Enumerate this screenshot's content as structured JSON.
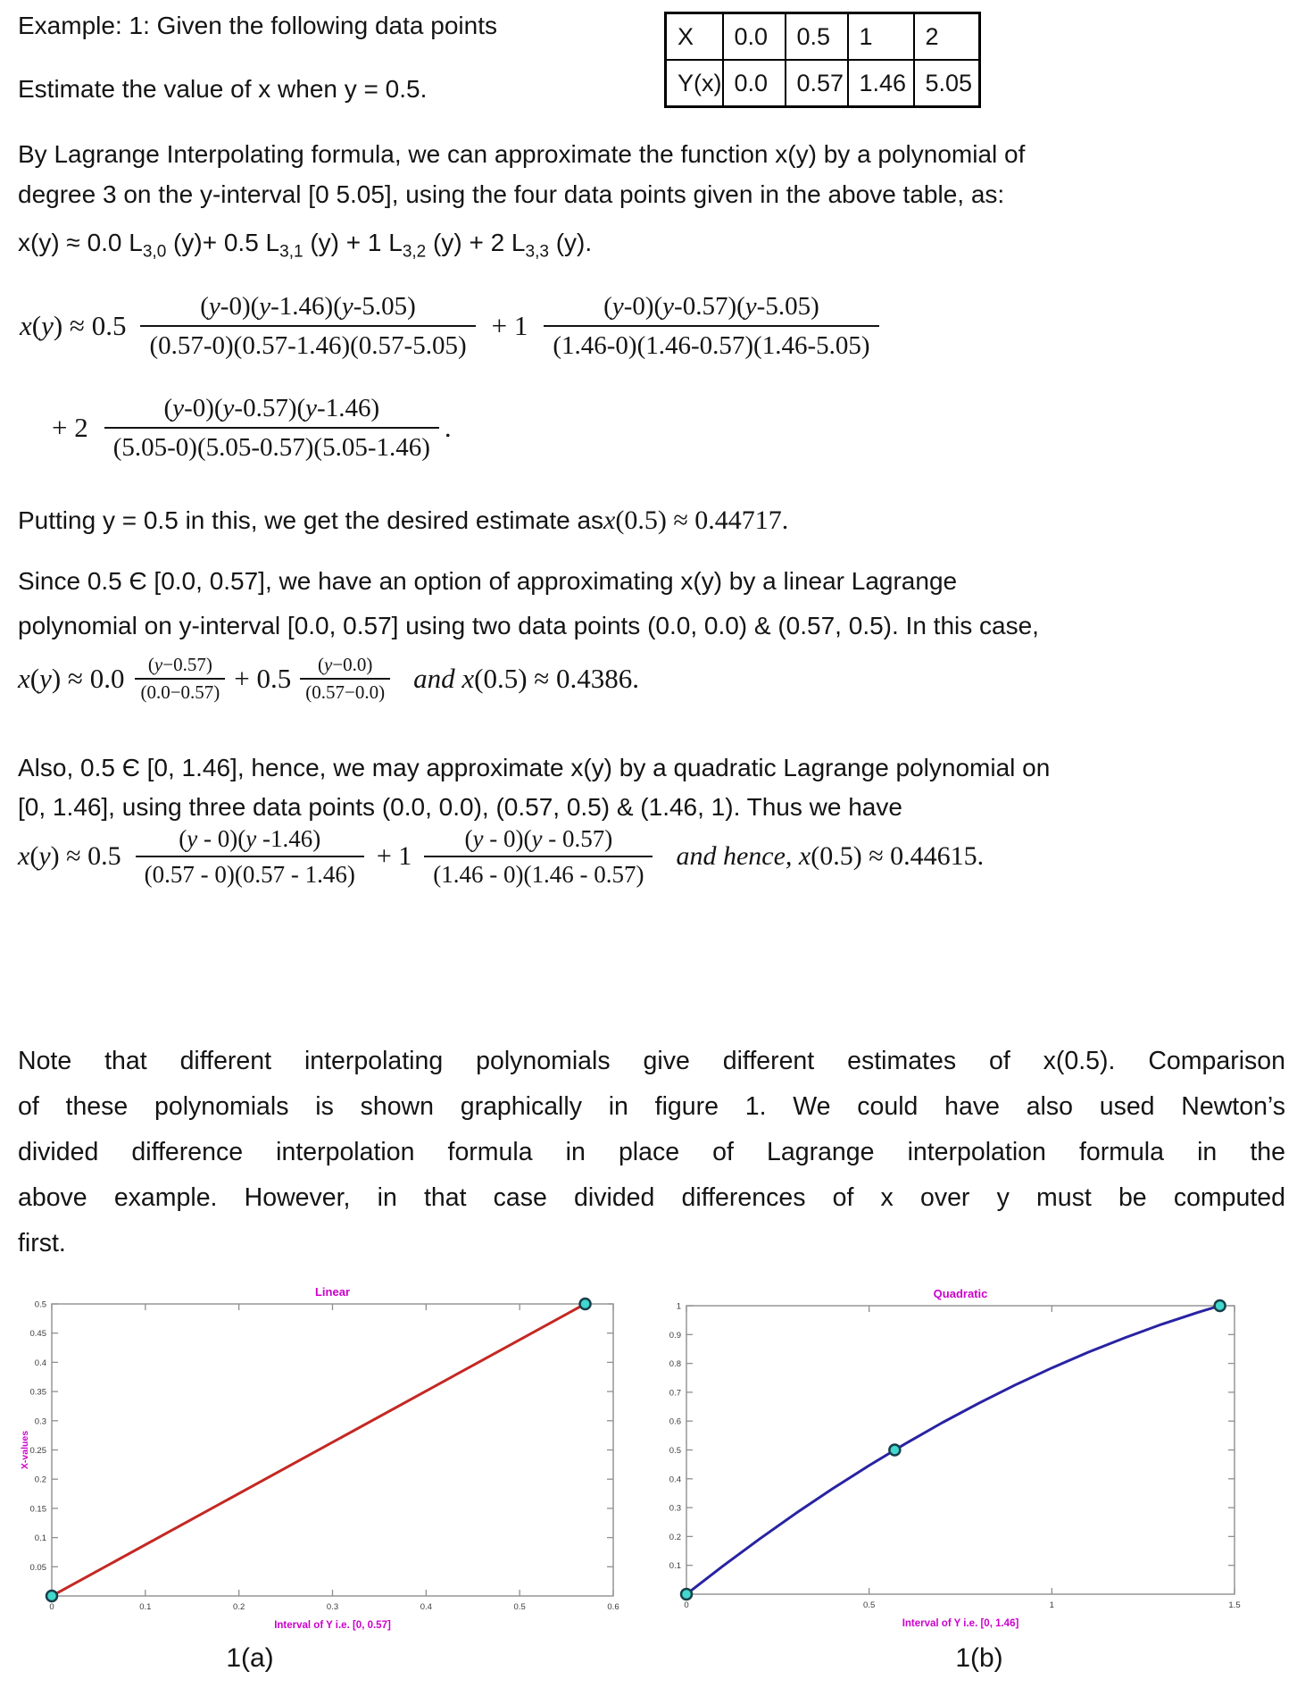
{
  "header": {
    "line1": "Example: 1: Given the following data points",
    "line2": "Estimate the value of x when y = 0.5."
  },
  "data_table": {
    "rows": [
      [
        "X",
        "0.0",
        "0.5",
        "1",
        "2"
      ],
      [
        "Y(x)",
        "0.0",
        "0.57",
        "1.46",
        "5.05"
      ]
    ]
  },
  "para_lagrange": {
    "lines": [
      "By Lagrange Interpolating formula, we can approximate the function x(y) by a polynomial of",
      "degree 3 on the y-interval [0  5.05], using the four data points given in the above table, as:"
    ]
  },
  "eq_basis": {
    "parts": [
      "x(y) ≈ 0.0 L",
      "3,0",
      " (y)+ 0.5 L",
      "3,1",
      " (y) + 1 L",
      "3,2",
      " (y) + 2 L",
      "3,3",
      " (y)."
    ]
  },
  "eq_cubic": {
    "lead": "x(y) ≈ 0.5",
    "frac1": {
      "num": "(y-0)(y-1.46)(y-5.05)",
      "den": "(0.57-0)(0.57-1.46)(0.57-5.05)"
    },
    "plus1": "+ 1",
    "frac2": {
      "num": "(y-0)(y-0.57)(y-5.05)",
      "den": "(1.46-0)(1.46-0.57)(1.46-5.05)"
    },
    "plus2": "+ 2",
    "frac3": {
      "num": "(y-0)(y-0.57)(y-1.46)",
      "den": "(5.05-0)(5.05-0.57)(5.05-1.46)"
    },
    "period": "."
  },
  "para_putting": {
    "prefix": "Putting y = 0.5 in this, we get the desired estimate as ",
    "math": "x(0.5) ≈ 0.44717."
  },
  "para_since": {
    "lines": [
      "Since 0.5 Є [0.0, 0.57], we have an option of approximating x(y) by a linear Lagrange",
      "polynomial on y-interval [0.0, 0.57] using two data points (0.0, 0.0) & (0.57, 0.5). In this case,"
    ]
  },
  "eq_linear": {
    "lead": "x(y) ≈ 0.0",
    "frac1": {
      "num": "(y−0.57)",
      "den": "(0.0−0.57)"
    },
    "plus": "+ 0.5",
    "frac2": {
      "num": "(y−0.0)",
      "den": "(0.57−0.0)"
    },
    "tail_and": "and ",
    "tail_rest": "x(0.5) ≈ 0.4386."
  },
  "para_also": {
    "lines": [
      "Also, 0.5 Є [0, 1.46], hence, we may approximate x(y) by a quadratic Lagrange polynomial on",
      "[0, 1.46], using three data points (0.0, 0.0), (0.57, 0.5) & (1.46, 1). Thus we have"
    ]
  },
  "eq_quadratic": {
    "lead": "x(y) ≈ 0.5",
    "frac1": {
      "num": "(y - 0)(y -1.46)",
      "den": "(0.57 - 0)(0.57 - 1.46)"
    },
    "plus": "+ 1",
    "frac2": {
      "num": "(y - 0)(y - 0.57)",
      "den": "(1.46 - 0)(1.46 - 0.57)"
    },
    "tail_and": "and hence, ",
    "tail_rest": "x(0.5) ≈ 0.44615."
  },
  "para_note": {
    "lines": [
      "Note that different interpolating polynomials give different estimates of x(0.5). Comparison",
      "of these polynomials is shown graphically in figure 1. We could have also used Newton’s",
      "divided difference interpolation formula in place of Lagrange interpolation formula in the",
      "above example. However, in that case divided differences of x over y must be computed",
      "first."
    ]
  },
  "figures": {
    "caption_a": "1(a)",
    "caption_b": "1(b)"
  },
  "chart_data": [
    {
      "type": "line",
      "title": "Linear",
      "xlabel": "Interval of Y i.e. [0, 0.57]",
      "ylabel": "X-values",
      "xlim": [
        0,
        0.6
      ],
      "ylim": [
        0,
        0.5
      ],
      "xtick_vals": [
        0,
        0.1,
        0.2,
        0.3,
        0.4,
        0.5,
        0.6
      ],
      "xtick_labels": [
        "0",
        "0.1",
        "0.2",
        "0.3",
        "0.4",
        "0.5",
        "0.6"
      ],
      "ytick_vals": [
        0.05,
        0.1,
        0.15,
        0.2,
        0.25,
        0.3,
        0.35,
        0.4,
        0.45,
        0.5
      ],
      "ytick_labels": [
        "0.05",
        "0.1",
        "0.15",
        "0.2",
        "0.25",
        "0.3",
        "0.35",
        "0.4",
        "0.45",
        "0.5"
      ],
      "line_color": "#c42823",
      "marker_fill": "#41d8cd",
      "marker_edge": "#173f4a",
      "accent_color": "#cc00cc",
      "curve": [
        [
          0,
          0
        ],
        [
          0.57,
          0.5
        ]
      ],
      "markers": [
        [
          0,
          0
        ],
        [
          0.57,
          0.5
        ]
      ]
    },
    {
      "type": "line",
      "title": "Quadratic",
      "xlabel": "Interval of Y i.e. [0, 1.46]",
      "ylabel": "X-values",
      "xlim": [
        0,
        1.5
      ],
      "ylim": [
        0,
        1
      ],
      "xtick_vals": [
        0,
        0.5,
        1,
        1.5
      ],
      "xtick_labels": [
        "0",
        "0.5",
        "1",
        "1.5"
      ],
      "ytick_vals": [
        0.1,
        0.2,
        0.3,
        0.4,
        0.5,
        0.6,
        0.7,
        0.8,
        0.9,
        1
      ],
      "ytick_labels": [
        "0.1",
        "0.2",
        "0.3",
        "0.4",
        "0.5",
        "0.6",
        "0.7",
        "0.8",
        "0.9",
        "1"
      ],
      "line_color": "#2823a2",
      "marker_fill": "#41d8cd",
      "marker_edge": "#173f4a",
      "accent_color": "#cc00cc",
      "curve": [
        [
          0,
          0
        ],
        [
          0.1,
          0.0979
        ],
        [
          0.2,
          0.1914
        ],
        [
          0.3,
          0.2807
        ],
        [
          0.4,
          0.3656
        ],
        [
          0.5,
          0.4462
        ],
        [
          0.6,
          0.5224
        ],
        [
          0.7,
          0.5944
        ],
        [
          0.8,
          0.662
        ],
        [
          0.9,
          0.7253
        ],
        [
          1.0,
          0.7843
        ],
        [
          1.1,
          0.839
        ],
        [
          1.2,
          0.889
        ],
        [
          1.3,
          0.9354
        ],
        [
          1.4,
          0.9771
        ],
        [
          1.46,
          1.0
        ]
      ],
      "markers": [
        [
          0,
          0
        ],
        [
          0.57,
          0.5
        ],
        [
          1.46,
          1
        ]
      ]
    }
  ]
}
